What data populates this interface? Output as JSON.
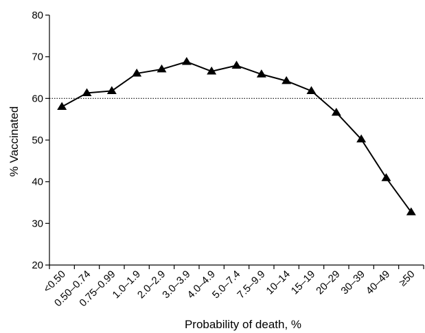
{
  "chart_data": {
    "type": "line",
    "title": "",
    "xlabel": "Probability of death, %",
    "ylabel": "% Vaccinated",
    "categories": [
      "<0.50",
      "0.50–0.74",
      "0.75–0.99",
      "1.0–1.9",
      "2.0–2.9",
      "3.0–3.9",
      "4.0–4.9",
      "5.0–7.4",
      "7.5–9.9",
      "10–14",
      "15–19",
      "20–29",
      "30–39",
      "40–49",
      "≥50"
    ],
    "series": [
      {
        "values": [
          58,
          61.3,
          61.8,
          66,
          67,
          68.8,
          66.5,
          67.9,
          65.8,
          64.2,
          61.8,
          56.6,
          50.2,
          40.9,
          32.7
        ]
      }
    ],
    "reference_line": {
      "value": 60,
      "style": "dotted"
    },
    "ylim": [
      20,
      80
    ],
    "yticks": [
      20,
      30,
      40,
      50,
      60,
      70,
      80
    ],
    "grid": false,
    "marker": "triangle",
    "line_color": "#000000"
  }
}
